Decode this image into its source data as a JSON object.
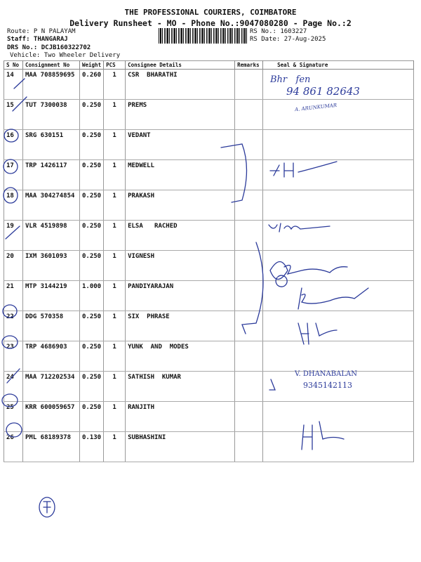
{
  "header": {
    "company": "THE PROFESSIONAL COURIERS, COIMBATORE",
    "subtitle": "Delivery Runsheet - MO - Phone No.:9047080280 - Page No.:2",
    "route": "Route: P N PALAYAM",
    "staff": "Staff: THANGARAJ",
    "drs_no": "DRS No.: DCJB160322702",
    "vehicle": "Vehicle: Two Wheeler Delivery",
    "rs_no": "RS No.: 1603227",
    "rs_date": "RS Date: 27-Aug-2025"
  },
  "table": {
    "columns": [
      "S No",
      "Consignment No",
      "Weight",
      "PCS",
      "Consignee Details",
      "Remarks",
      "Seal & Signature"
    ],
    "rows": [
      {
        "sno": "14",
        "consignment": "MAA 708859695",
        "weight": "0.260",
        "pcs": "1",
        "consignee": "CSR  BHARATHI"
      },
      {
        "sno": "15",
        "consignment": "TUT 7300038",
        "weight": "0.250",
        "pcs": "1",
        "consignee": "PREMS"
      },
      {
        "sno": "16",
        "consignment": "SRG 630151",
        "weight": "0.250",
        "pcs": "1",
        "consignee": "VEDANT"
      },
      {
        "sno": "17",
        "consignment": "TRP 1426117",
        "weight": "0.250",
        "pcs": "1",
        "consignee": "MEDWELL"
      },
      {
        "sno": "18",
        "consignment": "MAA 304274854",
        "weight": "0.250",
        "pcs": "1",
        "consignee": "PRAKASH"
      },
      {
        "sno": "19",
        "consignment": "VLR 4519898",
        "weight": "0.250",
        "pcs": "1",
        "consignee": "ELSA   RACHED"
      },
      {
        "sno": "20",
        "consignment": "IXM 3601093",
        "weight": "0.250",
        "pcs": "1",
        "consignee": "VIGNESH"
      },
      {
        "sno": "21",
        "consignment": "MTP 3144219",
        "weight": "1.000",
        "pcs": "1",
        "consignee": "PANDIYARAJAN"
      },
      {
        "sno": "22",
        "consignment": "DDG 570358",
        "weight": "0.250",
        "pcs": "1",
        "consignee": "SIX  PHRASE"
      },
      {
        "sno": "23",
        "consignment": "TRP 4686903",
        "weight": "0.250",
        "pcs": "1",
        "consignee": "YUNK  AND  MODES"
      },
      {
        "sno": "24",
        "consignment": "MAA 712202534",
        "weight": "0.250",
        "pcs": "1",
        "consignee": "SATHISH  KUMAR"
      },
      {
        "sno": "25",
        "consignment": "KRR 600059657",
        "weight": "0.250",
        "pcs": "1",
        "consignee": "RANJITH"
      },
      {
        "sno": "26",
        "consignment": "PML 68189378",
        "weight": "0.130",
        "pcs": "1",
        "consignee": "SUBHASHINI"
      }
    ]
  },
  "handwriting": {
    "row14_phone": "94 861 82643",
    "row15_name": "A. ARUNKUMAR",
    "row24_name": "V. DHANABALAN",
    "row24_phone": "9345142113"
  },
  "colors": {
    "ink": "#2b3a9a",
    "text": "#111111",
    "rule": "#999999"
  }
}
